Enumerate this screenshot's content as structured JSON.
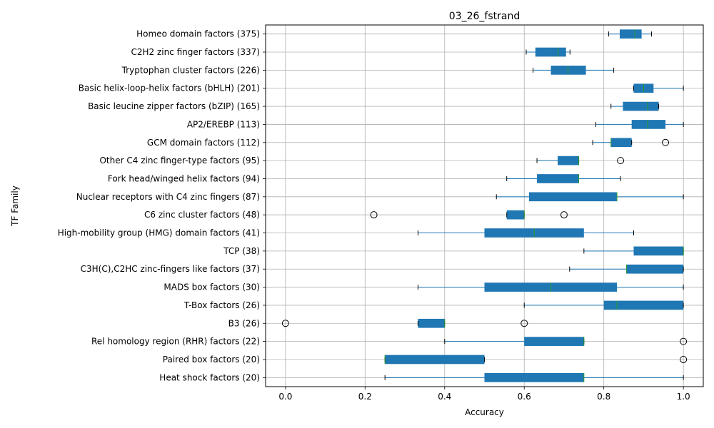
{
  "chart_data": {
    "type": "boxplot-horizontal",
    "title": "03_26_fstrand",
    "xlabel": "Accuracy",
    "ylabel": "TF Family",
    "xlim": [
      -0.05,
      1.05
    ],
    "xticks": [
      "0.0",
      "0.2",
      "0.4",
      "0.6",
      "0.8",
      "1.0"
    ],
    "grid": true,
    "colors": {
      "box": "#1f77b4",
      "median": "#2ca02c",
      "whisker": "#1f77b4",
      "cap": "#000000",
      "outlier": "#000000",
      "grid": "#b0b0b0"
    },
    "series": [
      {
        "name": "Homeo domain factors (375)",
        "whislo": 0.812,
        "q1": 0.84,
        "med": 0.878,
        "q3": 0.895,
        "whishi": 0.92,
        "fliers": []
      },
      {
        "name": "C2H2 zinc finger factors (337)",
        "whislo": 0.605,
        "q1": 0.628,
        "med": 0.685,
        "q3": 0.705,
        "whishi": 0.715,
        "fliers": []
      },
      {
        "name": "Tryptophan cluster factors (226)",
        "whislo": 0.622,
        "q1": 0.667,
        "med": 0.71,
        "q3": 0.755,
        "whishi": 0.825,
        "fliers": []
      },
      {
        "name": "Basic helix-loop-helix factors (bHLH) (201)",
        "whislo": 0.875,
        "q1": 0.875,
        "med": 0.9,
        "q3": 0.925,
        "whishi": 1.0,
        "fliers": []
      },
      {
        "name": "Basic leucine zipper factors (bZIP) (165)",
        "whislo": 0.818,
        "q1": 0.848,
        "med": 0.91,
        "q3": 0.938,
        "whishi": 0.938,
        "fliers": []
      },
      {
        "name": "AP2/EREBP (113)",
        "whislo": 0.78,
        "q1": 0.87,
        "med": 0.91,
        "q3": 0.955,
        "whishi": 1.0,
        "fliers": []
      },
      {
        "name": "GCM domain factors (112)",
        "whislo": 0.772,
        "q1": 0.818,
        "med": 0.818,
        "q3": 0.87,
        "whishi": 0.87,
        "fliers": [
          0.955
        ]
      },
      {
        "name": "Other C4 zinc finger-type factors (95)",
        "whislo": 0.632,
        "q1": 0.684,
        "med": 0.737,
        "q3": 0.737,
        "whishi": 0.737,
        "fliers": [
          0.842
        ]
      },
      {
        "name": "Fork head/winged helix factors (94)",
        "whislo": 0.556,
        "q1": 0.632,
        "med": 0.737,
        "q3": 0.737,
        "whishi": 0.842,
        "fliers": []
      },
      {
        "name": "Nuclear receptors with C4 zinc fingers (87)",
        "whislo": 0.53,
        "q1": 0.612,
        "med": 0.833,
        "q3": 0.833,
        "whishi": 1.0,
        "fliers": []
      },
      {
        "name": "C6 zinc cluster factors (48)",
        "whislo": 0.556,
        "q1": 0.556,
        "med": 0.6,
        "q3": 0.6,
        "whishi": 0.6,
        "fliers": [
          0.222,
          0.7
        ]
      },
      {
        "name": "High-mobility group (HMG) domain factors (41)",
        "whislo": 0.333,
        "q1": 0.5,
        "med": 0.625,
        "q3": 0.75,
        "whishi": 0.875,
        "fliers": []
      },
      {
        "name": "TCP (38)",
        "whislo": 0.75,
        "q1": 0.875,
        "med": 1.0,
        "q3": 1.0,
        "whishi": 1.0,
        "fliers": []
      },
      {
        "name": "C3H(C),C2HC zinc-fingers like factors (37)",
        "whislo": 0.714,
        "q1": 0.857,
        "med": 0.857,
        "q3": 1.0,
        "whishi": 1.0,
        "fliers": []
      },
      {
        "name": "MADS box factors (30)",
        "whislo": 0.333,
        "q1": 0.5,
        "med": 0.667,
        "q3": 0.833,
        "whishi": 1.0,
        "fliers": []
      },
      {
        "name": "T-Box factors (26)",
        "whislo": 0.6,
        "q1": 0.8,
        "med": 0.833,
        "q3": 1.0,
        "whishi": 1.0,
        "fliers": []
      },
      {
        "name": "B3 (26)",
        "whislo": 0.333,
        "q1": 0.333,
        "med": 0.4,
        "q3": 0.4,
        "whishi": 0.4,
        "fliers": [
          0.0,
          0.6
        ]
      },
      {
        "name": "Rel homology region (RHR) factors (22)",
        "whislo": 0.4,
        "q1": 0.6,
        "med": 0.75,
        "q3": 0.75,
        "whishi": 0.75,
        "fliers": [
          1.0
        ]
      },
      {
        "name": "Paired box factors (20)",
        "whislo": 0.25,
        "q1": 0.25,
        "med": 0.25,
        "q3": 0.5,
        "whishi": 0.5,
        "fliers": [
          1.0
        ]
      },
      {
        "name": "Heat shock factors (20)",
        "whislo": 0.25,
        "q1": 0.5,
        "med": 0.75,
        "q3": 0.75,
        "whishi": 1.0,
        "fliers": []
      }
    ]
  }
}
